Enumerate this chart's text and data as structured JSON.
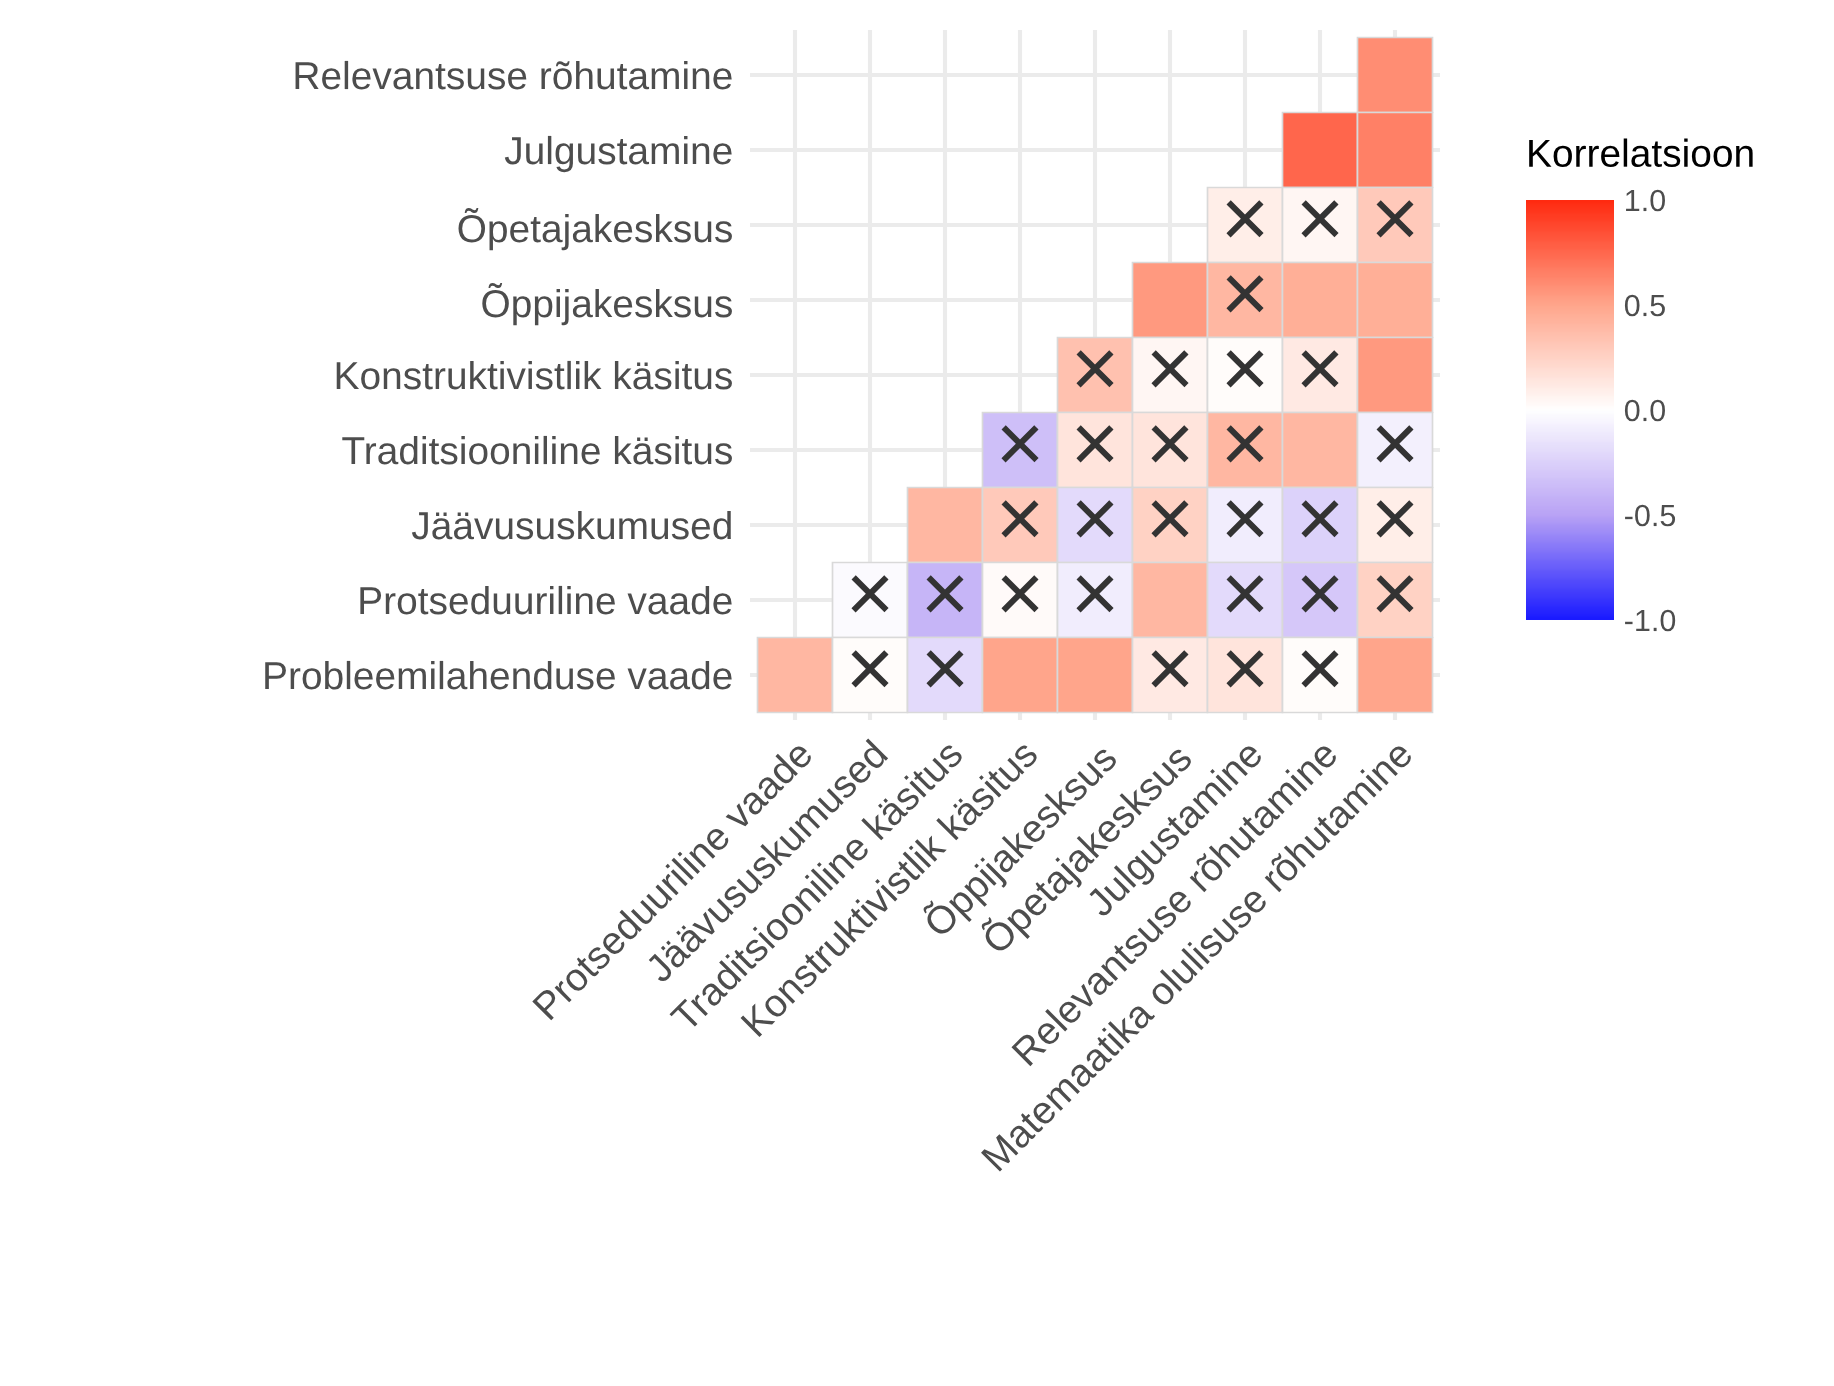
{
  "chart_data": {
    "type": "heatmap",
    "categories": [
      "Protseduuriline vaade",
      "Jäävususkumused",
      "Traditsiooniline käsitus",
      "Konstruktivistlik käsitus",
      "Õppijakesksus",
      "Õpetajakesksus",
      "Julgustamine",
      "Relevantsuse rõhutamine",
      "Matemaatika olulisuse rõhutamine"
    ],
    "y_categories": [
      "Relevantsuse rõhutamine",
      "Julgustamine",
      "Õpetajakesksus",
      "Õppijakesksus",
      "Konstruktivistlik käsitus",
      "Traditsiooniline käsitus",
      "Jäävususkumused",
      "Protseduuriline vaade",
      "Probleemilahenduse vaade"
    ],
    "cells": [
      [
        null,
        null,
        null,
        null,
        null,
        null,
        null,
        null,
        0.6
      ],
      [
        null,
        null,
        null,
        null,
        null,
        null,
        null,
        0.75,
        0.65
      ],
      [
        null,
        null,
        null,
        null,
        null,
        null,
        0.1,
        0.05,
        0.3
      ],
      [
        null,
        null,
        null,
        null,
        null,
        0.55,
        0.4,
        0.45,
        0.45
      ],
      [
        null,
        null,
        null,
        null,
        0.35,
        0.05,
        0.02,
        0.12,
        0.55
      ],
      [
        null,
        null,
        null,
        -0.35,
        0.15,
        0.15,
        0.4,
        0.4,
        -0.08
      ],
      [
        null,
        null,
        0.4,
        0.3,
        -0.2,
        0.25,
        -0.1,
        -0.25,
        0.1
      ],
      [
        null,
        -0.03,
        -0.4,
        0.03,
        -0.1,
        0.4,
        -0.2,
        -0.3,
        0.25
      ],
      [
        0.4,
        0.02,
        -0.2,
        0.5,
        0.5,
        0.12,
        0.15,
        0.02,
        0.5
      ]
    ],
    "cell_labels": [
      [
        null,
        null,
        null,
        null,
        null,
        null,
        null,
        null,
        null
      ],
      [
        null,
        null,
        null,
        null,
        null,
        null,
        null,
        null,
        null
      ],
      [
        null,
        null,
        null,
        null,
        null,
        null,
        "×",
        "×",
        "×"
      ],
      [
        null,
        null,
        null,
        null,
        null,
        null,
        "×",
        null,
        null
      ],
      [
        null,
        null,
        null,
        null,
        "×",
        "×",
        "×",
        "×",
        null
      ],
      [
        null,
        null,
        null,
        "×",
        "×",
        "×",
        "×",
        null,
        "×"
      ],
      [
        null,
        null,
        null,
        "×",
        "×",
        "×",
        "×",
        "×",
        "×"
      ],
      [
        null,
        "×",
        "×",
        "×",
        "×",
        null,
        "×",
        "×",
        "×"
      ],
      [
        null,
        "×",
        "×",
        null,
        null,
        "×",
        "×",
        "×",
        null
      ]
    ],
    "clabel": "Korrelatsioon",
    "clim": [
      -1.0,
      1.0
    ],
    "cticks": [
      {
        "value": -1.0,
        "label": "-1.0"
      },
      {
        "value": -0.5,
        "label": "-0.5"
      },
      {
        "value": 0.0,
        "label": "0.0"
      },
      {
        "value": 0.5,
        "label": "0.5"
      },
      {
        "value": 1.0,
        "label": "1.0"
      }
    ],
    "grid": true
  }
}
